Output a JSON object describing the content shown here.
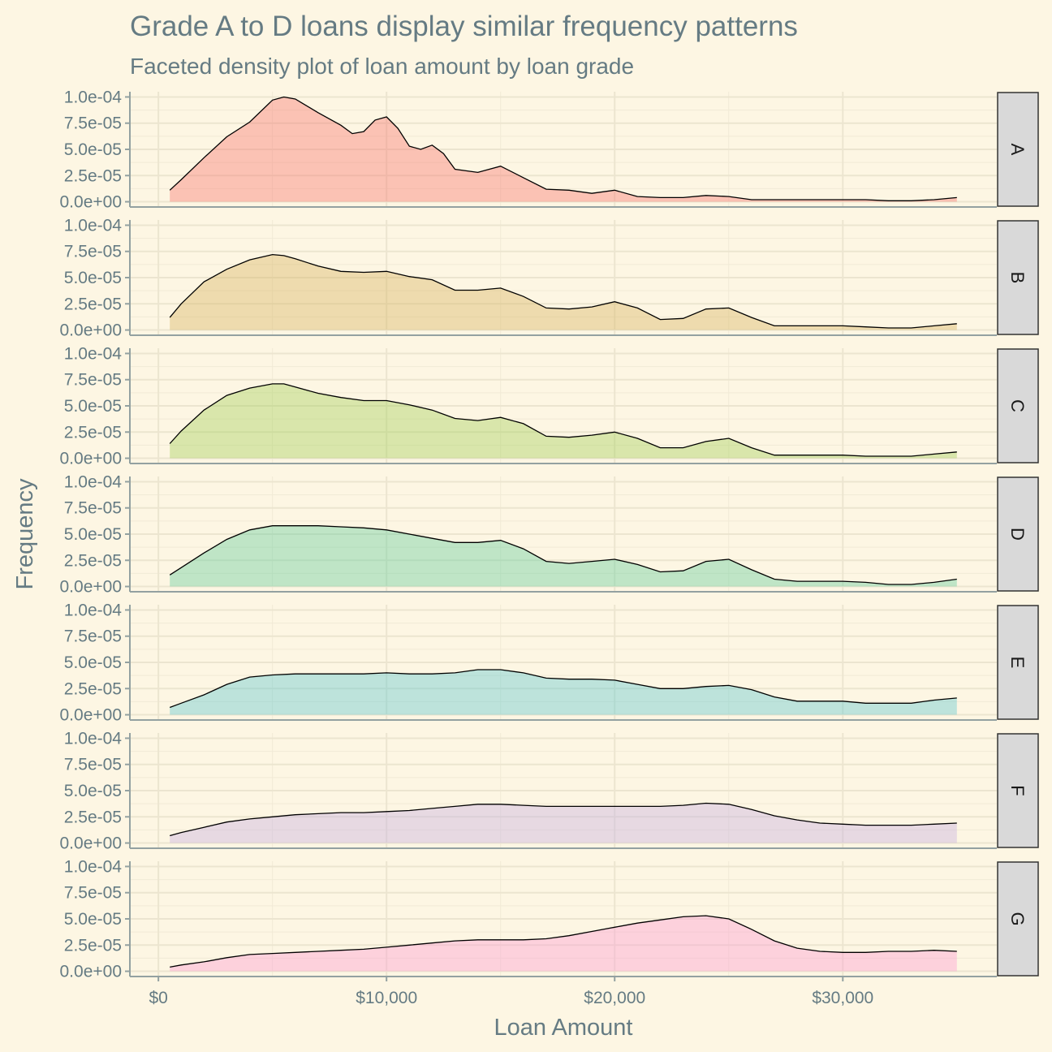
{
  "chart_data": {
    "type": "area",
    "title": "Grade A to D loans display similar frequency patterns",
    "subtitle": "Faceted density plot of loan amount by loan grade",
    "xlabel": "Loan Amount",
    "ylabel": "Frequency",
    "xlim": [
      -1250,
      36750
    ],
    "ylim": [
      -5e-06,
      0.000105
    ],
    "x_ticks": [
      0,
      10000,
      20000,
      30000
    ],
    "x_tick_labels": [
      "$0",
      "$10,000",
      "$20,000",
      "$30,000"
    ],
    "y_ticks": [
      0,
      2.5e-05,
      5e-05,
      7.5e-05,
      0.0001
    ],
    "y_tick_labels": [
      "0.0e+00",
      "2.5e-05",
      "5.0e-05",
      "7.5e-05",
      "1.0e-04"
    ],
    "grid": true,
    "facet_direction": "rows",
    "colors": {
      "background": "#fdf6e3",
      "panel_border": "#93a1a1",
      "strip_fill": "#d9d9d9",
      "text": "#657b83",
      "line": "#000000"
    },
    "series": [
      {
        "name": "A",
        "color": "#f8766d",
        "x": [
          500,
          1000,
          2000,
          3000,
          4000,
          5000,
          5500,
          6000,
          7000,
          8000,
          8500,
          9000,
          9500,
          10000,
          10500,
          11000,
          11500,
          12000,
          12500,
          13000,
          14000,
          15000,
          16000,
          17000,
          18000,
          19000,
          20000,
          21000,
          22000,
          23000,
          24000,
          25000,
          26000,
          27000,
          28000,
          29000,
          30000,
          31000,
          32000,
          33000,
          34000,
          35000
        ],
        "y": [
          1.1e-05,
          2.1e-05,
          4.2e-05,
          6.2e-05,
          7.6e-05,
          9.7e-05,
          0.0001,
          9.8e-05,
          8.5e-05,
          7.3e-05,
          6.5e-05,
          6.7e-05,
          7.8e-05,
          8.1e-05,
          7e-05,
          5.3e-05,
          5e-05,
          5.4e-05,
          4.6e-05,
          3.1e-05,
          2.8e-05,
          3.4e-05,
          2.3e-05,
          1.2e-05,
          1.1e-05,
          8e-06,
          1.1e-05,
          5e-06,
          4e-06,
          4e-06,
          6e-06,
          5e-06,
          2e-06,
          2e-06,
          2e-06,
          2e-06,
          2e-06,
          2e-06,
          1e-06,
          1e-06,
          2e-06,
          4e-06
        ]
      },
      {
        "name": "B",
        "color": "#d8b45e",
        "x": [
          500,
          1000,
          2000,
          3000,
          4000,
          5000,
          5500,
          6000,
          7000,
          8000,
          9000,
          10000,
          11000,
          12000,
          13000,
          14000,
          15000,
          16000,
          17000,
          18000,
          19000,
          20000,
          21000,
          22000,
          23000,
          24000,
          25000,
          26000,
          27000,
          28000,
          29000,
          30000,
          31000,
          32000,
          33000,
          34000,
          35000
        ],
        "y": [
          1.2e-05,
          2.5e-05,
          4.6e-05,
          5.8e-05,
          6.7e-05,
          7.2e-05,
          7.1e-05,
          6.8e-05,
          6.1e-05,
          5.6e-05,
          5.5e-05,
          5.6e-05,
          5.1e-05,
          4.8e-05,
          3.8e-05,
          3.8e-05,
          4e-05,
          3.2e-05,
          2.1e-05,
          2e-05,
          2.2e-05,
          2.7e-05,
          2.1e-05,
          1e-05,
          1.1e-05,
          2e-05,
          2.1e-05,
          1.2e-05,
          4e-06,
          4e-06,
          4e-06,
          4e-06,
          3e-06,
          2e-06,
          2e-06,
          4e-06,
          6e-06
        ]
      },
      {
        "name": "C",
        "color": "#a3cf58",
        "x": [
          500,
          1000,
          2000,
          3000,
          4000,
          5000,
          5500,
          6000,
          7000,
          8000,
          9000,
          10000,
          11000,
          12000,
          13000,
          14000,
          15000,
          16000,
          17000,
          18000,
          19000,
          20000,
          21000,
          22000,
          23000,
          24000,
          25000,
          26000,
          27000,
          28000,
          29000,
          30000,
          31000,
          32000,
          33000,
          34000,
          35000
        ],
        "y": [
          1.4e-05,
          2.6e-05,
          4.6e-05,
          6e-05,
          6.7e-05,
          7.1e-05,
          7.1e-05,
          6.8e-05,
          6.2e-05,
          5.8e-05,
          5.5e-05,
          5.5e-05,
          5.1e-05,
          4.6e-05,
          3.8e-05,
          3.6e-05,
          3.9e-05,
          3.3e-05,
          2.1e-05,
          2e-05,
          2.2e-05,
          2.5e-05,
          1.9e-05,
          1e-05,
          1e-05,
          1.6e-05,
          1.9e-05,
          1e-05,
          3e-06,
          3e-06,
          3e-06,
          3e-06,
          2e-06,
          2e-06,
          2e-06,
          4e-06,
          6e-06
        ]
      },
      {
        "name": "D",
        "color": "#62cc9a",
        "x": [
          500,
          1000,
          2000,
          3000,
          4000,
          5000,
          6000,
          7000,
          8000,
          9000,
          10000,
          11000,
          12000,
          13000,
          14000,
          15000,
          16000,
          17000,
          18000,
          19000,
          20000,
          21000,
          22000,
          23000,
          24000,
          25000,
          26000,
          27000,
          28000,
          29000,
          30000,
          31000,
          32000,
          33000,
          34000,
          35000
        ],
        "y": [
          1.1e-05,
          1.8e-05,
          3.2e-05,
          4.5e-05,
          5.4e-05,
          5.8e-05,
          5.8e-05,
          5.8e-05,
          5.7e-05,
          5.6e-05,
          5.4e-05,
          5e-05,
          4.6e-05,
          4.2e-05,
          4.2e-05,
          4.4e-05,
          3.6e-05,
          2.4e-05,
          2.2e-05,
          2.4e-05,
          2.6e-05,
          2.1e-05,
          1.4e-05,
          1.5e-05,
          2.4e-05,
          2.6e-05,
          1.6e-05,
          7e-06,
          5e-06,
          5e-06,
          5e-06,
          4e-06,
          2e-06,
          2e-06,
          4e-06,
          7e-06
        ]
      },
      {
        "name": "E",
        "color": "#5cc9d0",
        "x": [
          500,
          1000,
          2000,
          3000,
          4000,
          5000,
          6000,
          7000,
          8000,
          9000,
          10000,
          11000,
          12000,
          13000,
          14000,
          15000,
          16000,
          17000,
          18000,
          19000,
          20000,
          21000,
          22000,
          23000,
          24000,
          25000,
          26000,
          27000,
          28000,
          29000,
          30000,
          31000,
          32000,
          33000,
          34000,
          35000
        ],
        "y": [
          7e-06,
          1.1e-05,
          1.9e-05,
          2.9e-05,
          3.6e-05,
          3.8e-05,
          3.9e-05,
          3.9e-05,
          3.9e-05,
          3.9e-05,
          4e-05,
          3.9e-05,
          3.9e-05,
          4e-05,
          4.3e-05,
          4.3e-05,
          4e-05,
          3.5e-05,
          3.4e-05,
          3.4e-05,
          3.3e-05,
          2.9e-05,
          2.5e-05,
          2.5e-05,
          2.7e-05,
          2.8e-05,
          2.4e-05,
          1.7e-05,
          1.3e-05,
          1.3e-05,
          1.3e-05,
          1.1e-05,
          1.1e-05,
          1.1e-05,
          1.4e-05,
          1.6e-05
        ]
      },
      {
        "name": "F",
        "color": "#c6aee0",
        "x": [
          500,
          1000,
          2000,
          3000,
          4000,
          5000,
          6000,
          7000,
          8000,
          9000,
          10000,
          11000,
          12000,
          13000,
          14000,
          15000,
          16000,
          17000,
          18000,
          19000,
          20000,
          21000,
          22000,
          23000,
          24000,
          25000,
          26000,
          27000,
          28000,
          29000,
          30000,
          31000,
          32000,
          33000,
          34000,
          35000
        ],
        "y": [
          7e-06,
          1e-05,
          1.5e-05,
          2e-05,
          2.3e-05,
          2.5e-05,
          2.7e-05,
          2.8e-05,
          2.9e-05,
          2.9e-05,
          3e-05,
          3.1e-05,
          3.3e-05,
          3.5e-05,
          3.7e-05,
          3.7e-05,
          3.6e-05,
          3.5e-05,
          3.5e-05,
          3.5e-05,
          3.5e-05,
          3.5e-05,
          3.5e-05,
          3.6e-05,
          3.8e-05,
          3.7e-05,
          3.2e-05,
          2.6e-05,
          2.2e-05,
          1.9e-05,
          1.8e-05,
          1.7e-05,
          1.7e-05,
          1.7e-05,
          1.8e-05,
          1.9e-05
        ]
      },
      {
        "name": "G",
        "color": "#fc9cd1",
        "x": [
          500,
          1000,
          2000,
          3000,
          4000,
          5000,
          6000,
          7000,
          8000,
          9000,
          10000,
          11000,
          12000,
          13000,
          14000,
          15000,
          16000,
          17000,
          18000,
          19000,
          20000,
          21000,
          22000,
          23000,
          24000,
          25000,
          26000,
          27000,
          28000,
          29000,
          30000,
          31000,
          32000,
          33000,
          34000,
          35000
        ],
        "y": [
          4e-06,
          6e-06,
          9e-06,
          1.3e-05,
          1.6e-05,
          1.7e-05,
          1.8e-05,
          1.9e-05,
          2e-05,
          2.1e-05,
          2.3e-05,
          2.5e-05,
          2.7e-05,
          2.9e-05,
          3e-05,
          3e-05,
          3e-05,
          3.1e-05,
          3.4e-05,
          3.8e-05,
          4.2e-05,
          4.6e-05,
          4.9e-05,
          5.2e-05,
          5.3e-05,
          5e-05,
          4e-05,
          2.9e-05,
          2.2e-05,
          1.9e-05,
          1.8e-05,
          1.8e-05,
          1.9e-05,
          1.9e-05,
          2e-05,
          1.9e-05
        ]
      }
    ]
  }
}
